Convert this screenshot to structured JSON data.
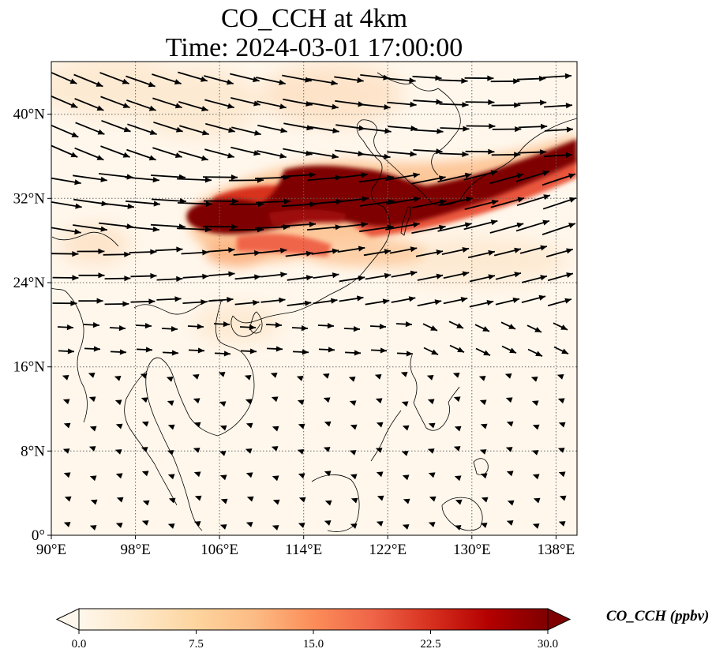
{
  "title": {
    "line1": "CO_CCH at 4km",
    "line2": "Time: 2024-03-01 17:00:00"
  },
  "map": {
    "lon_range": [
      90,
      140
    ],
    "lat_range": [
      0,
      45
    ],
    "x_ticks": [
      {
        "value": 90,
        "label": "90°E"
      },
      {
        "value": 98,
        "label": "98°E"
      },
      {
        "value": 106,
        "label": "106°E"
      },
      {
        "value": 114,
        "label": "114°E"
      },
      {
        "value": 122,
        "label": "122°E"
      },
      {
        "value": 130,
        "label": "130°E"
      },
      {
        "value": 138,
        "label": "138°E"
      }
    ],
    "y_ticks": [
      {
        "value": 0,
        "label": "0°"
      },
      {
        "value": 8,
        "label": "8°N"
      },
      {
        "value": 16,
        "label": "16°N"
      },
      {
        "value": 24,
        "label": "24°N"
      },
      {
        "value": 32,
        "label": "32°N"
      },
      {
        "value": 40,
        "label": "40°N"
      }
    ],
    "gridlines": true,
    "plume_color": "#7f0000"
  },
  "colorbar": {
    "label": "CO_CCH (ppbv)",
    "colormap": "OrRd",
    "min": 0.0,
    "max": 30.0,
    "extend": "both",
    "ticks": [
      "0.0",
      "7.5",
      "15.0",
      "22.5",
      "30.0"
    ],
    "tick_values": [
      0.0,
      7.5,
      15.0,
      22.5,
      30.0
    ]
  }
}
